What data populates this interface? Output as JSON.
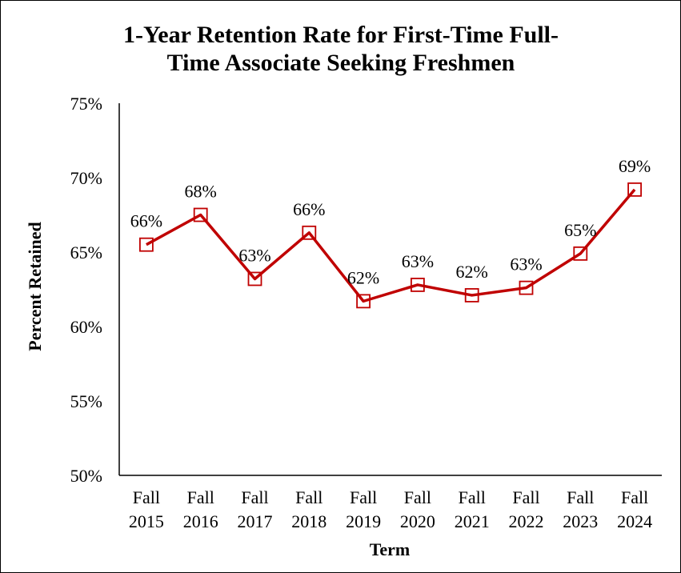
{
  "chart_data": {
    "type": "line",
    "title": "1-Year Retention Rate for First-Time Full-Time Associate Seeking Freshmen",
    "title_lines": [
      "1-Year Retention Rate for First-Time Full-",
      "Time Associate Seeking Freshmen"
    ],
    "xlabel": "Term",
    "ylabel": "Percent Retained",
    "categories": [
      [
        "Fall",
        "2015"
      ],
      [
        "Fall",
        "2016"
      ],
      [
        "Fall",
        "2017"
      ],
      [
        "Fall",
        "2018"
      ],
      [
        "Fall",
        "2019"
      ],
      [
        "Fall",
        "2020"
      ],
      [
        "Fall",
        "2021"
      ],
      [
        "Fall",
        "2022"
      ],
      [
        "Fall",
        "2023"
      ],
      [
        "Fall",
        "2024"
      ]
    ],
    "values": [
      65.5,
      67.5,
      63.2,
      66.3,
      61.7,
      62.8,
      62.1,
      62.6,
      64.9,
      69.2
    ],
    "data_labels": [
      "66%",
      "68%",
      "63%",
      "66%",
      "62%",
      "63%",
      "62%",
      "63%",
      "65%",
      "69%"
    ],
    "ylim": [
      50,
      75
    ],
    "yticks": [
      50,
      55,
      60,
      65,
      70,
      75
    ],
    "ytick_labels": [
      "50%",
      "55%",
      "60%",
      "65%",
      "70%",
      "75%"
    ],
    "grid": false,
    "legend": "none",
    "marker": "open-square",
    "series_color": "#C00000"
  }
}
